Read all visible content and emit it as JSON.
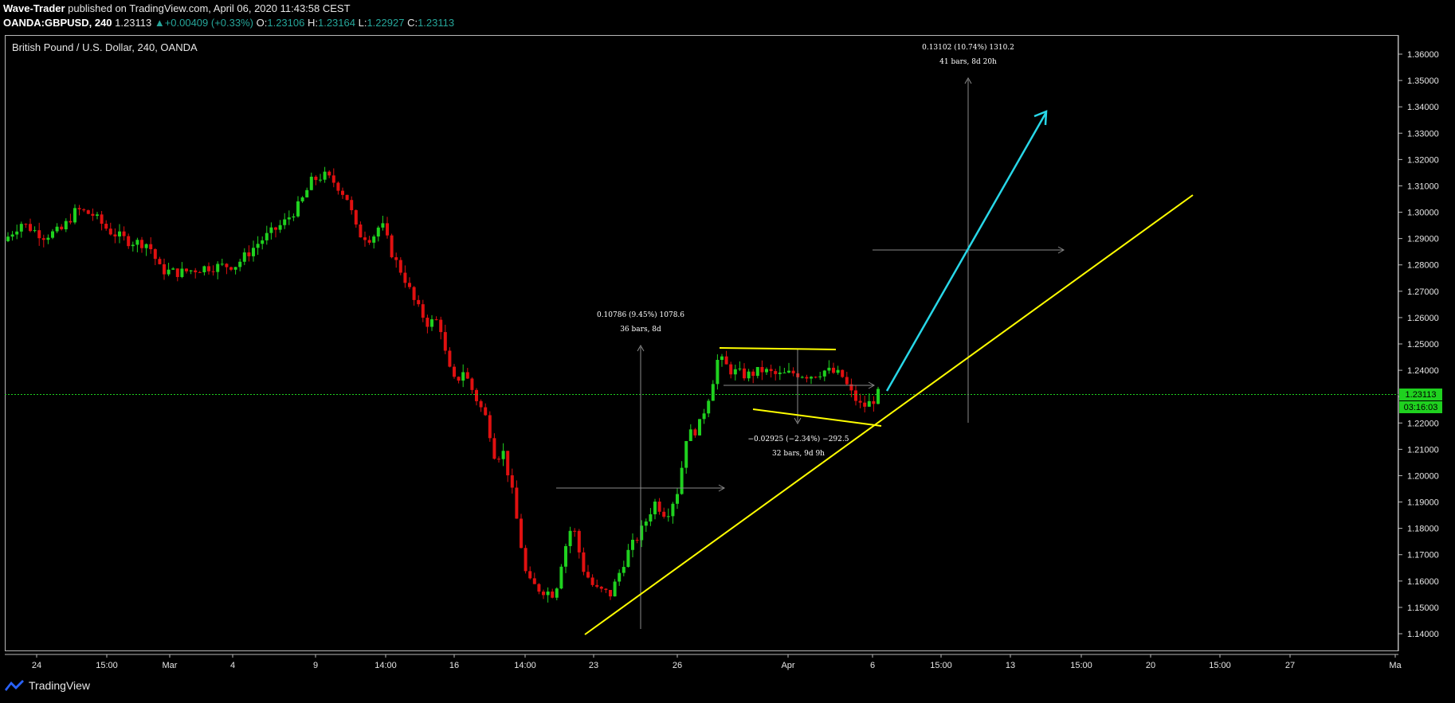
{
  "header": {
    "author": "Wave-Trader",
    "published": " published on TradingView.com, April 06, 2020 11:43:58 CEST",
    "symbol": "OANDA:GBPUSD, 240",
    "last": "1.23113",
    "change": "+0.00409 (+0.33%)",
    "o_label": "O:",
    "o": "1.23106",
    "h_label": "H:",
    "h": "1.23164",
    "l_label": "L:",
    "l": "1.22927",
    "c_label": "C:",
    "c": "1.23113"
  },
  "chart": {
    "title": "British Pound / U.S. Dollar, 240, OANDA",
    "price_label": "1.23113",
    "countdown": "03:16:03",
    "y_ticks": [
      "1.36000",
      "1.35000",
      "1.34000",
      "1.33000",
      "1.32000",
      "1.31000",
      "1.30000",
      "1.29000",
      "1.28000",
      "1.27000",
      "1.26000",
      "1.25000",
      "1.24000",
      "1.23000",
      "1.22000",
      "1.21000",
      "1.20000",
      "1.19000",
      "1.18000",
      "1.17000",
      "1.16000",
      "1.15000",
      "1.14000"
    ],
    "x_ticks": [
      "24",
      "15:00",
      "Mar",
      "4",
      "9",
      "14:00",
      "16",
      "14:00",
      "23",
      "26",
      "Apr",
      "6",
      "15:00",
      "13",
      "15:00",
      "20",
      "15:00",
      "27",
      "Ma"
    ],
    "annotations": {
      "measure1_line1": "0.10786 (9.45%) 1078.6",
      "measure1_line2": "36 bars, 8d",
      "measure2_line1": "−0.02925 (−2.34%) −292.5",
      "measure2_line2": "32 bars, 9d 9h",
      "measure3_line1": "0.13102 (10.74%) 1310.2",
      "measure3_line2": "41 bars, 8d 20h"
    },
    "colors": {
      "up": "#1fd11f",
      "down": "#e01010",
      "trend": "#ffff00",
      "arrow": "#28d7e8",
      "price_line": "#1fd11f",
      "measure": "#8a8a8a"
    }
  },
  "footer": {
    "brand": "TradingView"
  }
}
